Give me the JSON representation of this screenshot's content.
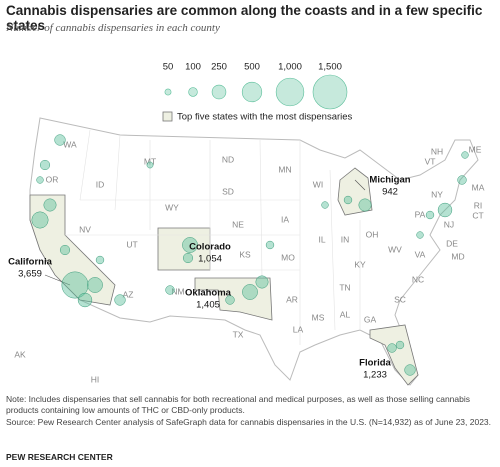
{
  "header": {
    "title": "Cannabis dispensaries are common along the coasts and in a few specific states",
    "subtitle": "Number of cannabis dispensaries in each county"
  },
  "legend": {
    "sizes": [
      50,
      100,
      250,
      500,
      {
        "value": 1000,
        "label": "1,000"
      },
      {
        "value": 1500,
        "label": "1,500"
      }
    ],
    "highlight": "Top five states with the most dispensaries",
    "color": "#5cbf9b"
  },
  "highlighted_states": [
    {
      "name": "California",
      "count": "3,659"
    },
    {
      "name": "Colorado",
      "count": "1,054"
    },
    {
      "name": "Oklahoma",
      "count": "1,405"
    },
    {
      "name": "Michigan",
      "count": "942"
    },
    {
      "name": "Florida",
      "count": "1,233"
    }
  ],
  "state_abbreviations": [
    "WA",
    "OR",
    "ID",
    "MT",
    "ND",
    "SD",
    "WY",
    "NE",
    "NV",
    "UT",
    "AZ",
    "NM",
    "KS",
    "TX",
    "MN",
    "IA",
    "MO",
    "AR",
    "LA",
    "WI",
    "IL",
    "MS",
    "AL",
    "GA",
    "TN",
    "KY",
    "IN",
    "OH",
    "WV",
    "VA",
    "NC",
    "SC",
    "PA",
    "NY",
    "ME",
    "NH",
    "VT",
    "MA",
    "RI",
    "CT",
    "NJ",
    "DE",
    "MD",
    "AK",
    "HI"
  ],
  "bubbles": [
    900,
    350,
    200,
    250,
    300,
    120,
    150,
    120,
    300,
    120,
    300,
    200,
    200,
    80,
    150,
    100,
    80,
    250,
    100,
    150,
    100,
    80,
    60,
    60,
    50,
    60,
    80,
    60,
    80,
    100
  ],
  "footer": {
    "note": "Note: Includes dispensaries that sell cannabis for both recreational and medical purposes, as well as those selling cannabis products containing low amounts of THC or CBD-only products.",
    "source": "Source: Pew Research Center analysis of SafeGraph data for cannabis dispensaries in the U.S. (N=14,932) as of June 23, 2023.",
    "brand": "PEW RESEARCH CENTER"
  }
}
